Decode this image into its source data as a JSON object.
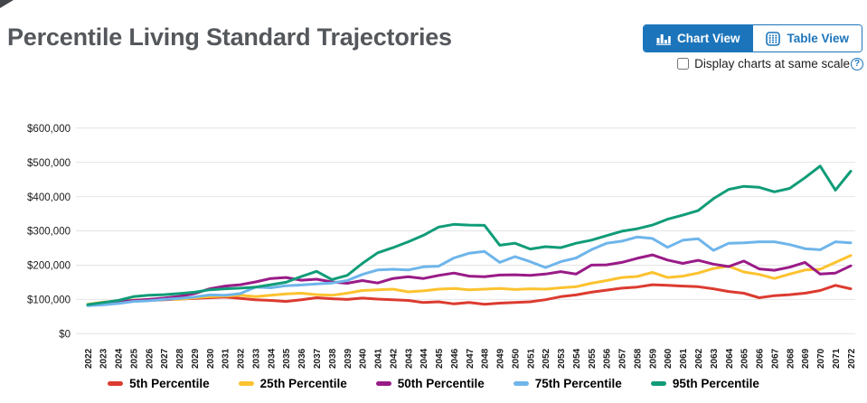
{
  "page": {
    "title": "Percentile Living Standard Trajectories"
  },
  "toolbar": {
    "chart_view_label": "Chart View",
    "table_view_label": "Table View",
    "active_view": "Chart View",
    "same_scale_label": "Display charts at same scale",
    "help_symbol": "?",
    "accent_color": "#1c75bb"
  },
  "chart_data": {
    "type": "line",
    "title": "Percentile Living Standard Trajectories",
    "xlabel": "",
    "ylabel": "",
    "grid": true,
    "legend_position": "bottom",
    "x": [
      2022,
      2023,
      2024,
      2025,
      2026,
      2027,
      2028,
      2029,
      2030,
      2031,
      2032,
      2033,
      2034,
      2035,
      2036,
      2037,
      2038,
      2039,
      2040,
      2041,
      2042,
      2043,
      2044,
      2045,
      2046,
      2047,
      2048,
      2049,
      2050,
      2051,
      2052,
      2053,
      2054,
      2055,
      2056,
      2057,
      2058,
      2059,
      2060,
      2061,
      2062,
      2063,
      2064,
      2065,
      2066,
      2067,
      2068,
      2069,
      2070,
      2071,
      2072
    ],
    "y_axis": {
      "min": 0,
      "max": 600000,
      "tick_step": 100000,
      "tick_labels": [
        "$0",
        "$100,000",
        "$200,000",
        "$300,000",
        "$400,000",
        "$500,000",
        "$600,000"
      ]
    },
    "series": [
      {
        "label": "5th Percentile",
        "color": "#dc3b30",
        "values": [
          84000,
          87000,
          91000,
          95000,
          97000,
          99000,
          101000,
          103000,
          105000,
          107000,
          103000,
          99000,
          97000,
          94000,
          99000,
          105000,
          102000,
          100000,
          104000,
          101000,
          99000,
          97000,
          91000,
          93000,
          87000,
          91000,
          86000,
          89000,
          91000,
          93000,
          99000,
          108000,
          113000,
          121000,
          127000,
          133000,
          136000,
          143000,
          141000,
          139000,
          137000,
          131000,
          123000,
          118000,
          105000,
          111000,
          114000,
          118000,
          126000,
          141000,
          131000
        ]
      },
      {
        "label": "25th Percentile",
        "color": "#fcc22f",
        "values": [
          86000,
          92000,
          95000,
          98000,
          100000,
          102000,
          100000,
          105000,
          108000,
          110000,
          112000,
          108000,
          112000,
          116000,
          118000,
          114000,
          112000,
          118000,
          126000,
          128000,
          130000,
          122000,
          125000,
          130000,
          132000,
          128000,
          130000,
          132000,
          129000,
          131000,
          130000,
          134000,
          137000,
          147000,
          155000,
          164000,
          167000,
          179000,
          164000,
          168000,
          177000,
          190000,
          197000,
          180000,
          173000,
          161000,
          174000,
          186000,
          188000,
          208000,
          228000
        ]
      },
      {
        "label": "50th Percentile",
        "color": "#991b87",
        "values": [
          83000,
          86000,
          93000,
          97000,
          100000,
          104000,
          109000,
          117000,
          131000,
          139000,
          143000,
          151000,
          161000,
          164000,
          156000,
          159000,
          151000,
          147000,
          155000,
          148000,
          161000,
          166000,
          161000,
          170000,
          177000,
          168000,
          166000,
          171000,
          172000,
          170000,
          174000,
          181000,
          174000,
          200000,
          201000,
          208000,
          220000,
          230000,
          215000,
          205000,
          214000,
          203000,
          196000,
          212000,
          189000,
          185000,
          194000,
          208000,
          174000,
          177000,
          198000
        ]
      },
      {
        "label": "75th Percentile",
        "color": "#6eb5ea",
        "values": [
          82000,
          84000,
          88000,
          94000,
          96000,
          100000,
          103000,
          107000,
          113000,
          112000,
          117000,
          136000,
          134000,
          140000,
          142000,
          145000,
          148000,
          155000,
          173000,
          186000,
          188000,
          186000,
          195000,
          197000,
          221000,
          235000,
          240000,
          208000,
          225000,
          210000,
          193000,
          210000,
          221000,
          245000,
          264000,
          270000,
          282000,
          278000,
          252000,
          273000,
          277000,
          243000,
          264000,
          265000,
          268000,
          268000,
          260000,
          248000,
          245000,
          268000,
          265000
        ]
      },
      {
        "label": "95th Percentile",
        "color": "#109c78",
        "values": [
          85000,
          91000,
          97000,
          108000,
          112000,
          114000,
          117000,
          121000,
          128000,
          131000,
          133000,
          136000,
          143000,
          150000,
          167000,
          182000,
          158000,
          170000,
          205000,
          236000,
          251000,
          268000,
          287000,
          311000,
          319000,
          317000,
          316000,
          258000,
          264000,
          247000,
          254000,
          251000,
          264000,
          273000,
          286000,
          299000,
          306000,
          317000,
          334000,
          346000,
          359000,
          394000,
          421000,
          430000,
          427000,
          414000,
          424000,
          455000,
          489000,
          419000,
          474000
        ]
      }
    ]
  }
}
